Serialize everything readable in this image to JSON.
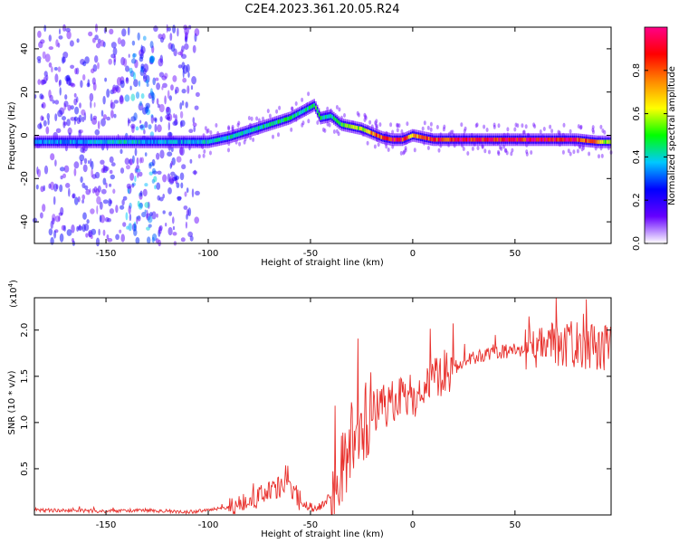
{
  "title": "C2E4.2023.361.20.05.R24",
  "chart_data": [
    {
      "type": "heatmap",
      "xlabel": "Height of straight line (km)",
      "ylabel": "Frequency (Hz)",
      "xlim": [
        -185,
        97
      ],
      "ylim": [
        -50,
        50
      ],
      "xticks": [
        -150,
        -100,
        -50,
        0,
        50
      ],
      "yticks": [
        -40,
        -20,
        0,
        20,
        40
      ],
      "ridge": {
        "x": [
          -185,
          -160,
          -140,
          -125,
          -110,
          -100,
          -90,
          -80,
          -70,
          -60,
          -52,
          -48,
          -45,
          -40,
          -35,
          -30,
          -25,
          -20,
          -15,
          -10,
          -5,
          0,
          5,
          10,
          20,
          40,
          60,
          80,
          90,
          97
        ],
        "y": [
          -3,
          -3,
          -3,
          -3,
          -3,
          -3,
          -1,
          2,
          5,
          8,
          12,
          14,
          8,
          9,
          5,
          4,
          3,
          1,
          -1,
          -2,
          -2,
          0,
          -1,
          -2,
          -2,
          -2,
          -2,
          -2,
          -3,
          -3
        ],
        "amplitude": [
          0.35,
          0.35,
          0.4,
          0.35,
          0.35,
          0.4,
          0.4,
          0.4,
          0.45,
          0.45,
          0.45,
          0.5,
          0.45,
          0.45,
          0.5,
          0.55,
          0.6,
          0.75,
          0.85,
          0.9,
          0.85,
          0.7,
          0.8,
          0.85,
          0.9,
          0.9,
          0.9,
          0.9,
          0.7,
          0.5
        ]
      },
      "colorbar": {
        "label": "Normalized spectral amplitude",
        "range": [
          0,
          1
        ],
        "ticks": [
          "0.0",
          "0.2",
          "0.4",
          "0.6",
          "0.8"
        ],
        "colors": [
          "#ffffff",
          "#6600ff",
          "#0000ff",
          "#00c8ff",
          "#00ff00",
          "#ffff00",
          "#ff8800",
          "#ff0000",
          "#ff0088"
        ]
      }
    },
    {
      "type": "line",
      "xlabel": "Height of straight line (km)",
      "ylabel": "SNR (10 * v/v)",
      "yscale_label": "(x10",
      "yscale_exp": "4",
      "xlim": [
        -185,
        97
      ],
      "ylim": [
        0,
        2.35
      ],
      "xticks": [
        -150,
        -100,
        -50,
        0,
        50
      ],
      "yticks": [
        "0.5",
        "1.0",
        "1.5",
        "2.0"
      ],
      "line_color": "#e8302c",
      "x": [
        -185,
        -170,
        -150,
        -130,
        -110,
        -100,
        -90,
        -80,
        -75,
        -70,
        -65,
        -60,
        -55,
        -50,
        -45,
        -40,
        -35,
        -30,
        -25,
        -20,
        -15,
        -10,
        -5,
        0,
        5,
        10,
        15,
        20,
        25,
        30,
        40,
        50,
        60,
        70,
        80,
        90,
        97
      ],
      "y": [
        0.05,
        0.05,
        0.04,
        0.05,
        0.03,
        0.05,
        0.08,
        0.12,
        0.2,
        0.25,
        0.3,
        0.3,
        0.15,
        0.08,
        0.1,
        0.2,
        0.5,
        0.8,
        1.0,
        1.1,
        1.15,
        1.2,
        1.25,
        1.3,
        1.35,
        1.45,
        1.55,
        1.6,
        1.65,
        1.7,
        1.75,
        1.78,
        1.8,
        1.85,
        1.85,
        1.8,
        1.8
      ]
    }
  ]
}
